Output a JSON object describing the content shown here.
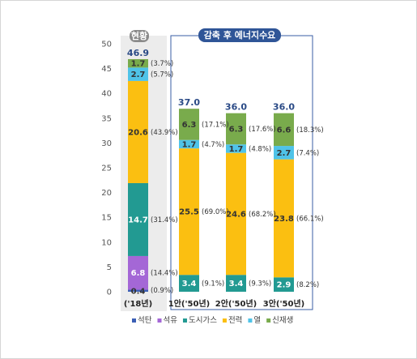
{
  "chart_data": {
    "type": "bar",
    "stacked": true,
    "ylim": [
      0,
      50
    ],
    "yticks": [
      0,
      5,
      10,
      15,
      20,
      25,
      30,
      35,
      40,
      45,
      50
    ],
    "grid": false,
    "categories": [
      "('18년)",
      "1안('50년)",
      "2안('50년)",
      "3안('50년)"
    ],
    "totals": [
      "46.9",
      "37.0",
      "36.0",
      "36.0"
    ],
    "groups": [
      {
        "label": "현황",
        "categories": [
          0
        ]
      },
      {
        "label": "감축 후 에너지수요",
        "categories": [
          1,
          2,
          3
        ]
      }
    ],
    "series": [
      {
        "name": "석탄",
        "color": "#3b5fb5",
        "values": [
          0.4,
          0,
          0,
          0
        ],
        "labels": [
          "0.4",
          "",
          "",
          ""
        ],
        "pct": [
          "(0.9%)",
          "",
          "",
          ""
        ]
      },
      {
        "name": "석유",
        "color": "#a467d6",
        "values": [
          6.8,
          0,
          0,
          0
        ],
        "labels": [
          "6.8",
          "",
          "",
          ""
        ],
        "pct": [
          "(14.4%)",
          "",
          "",
          ""
        ]
      },
      {
        "name": "도시가스",
        "color": "#229a92",
        "values": [
          14.7,
          3.4,
          3.4,
          2.9
        ],
        "labels": [
          "14.7",
          "3.4",
          "3.4",
          "2.9"
        ],
        "pct": [
          "(31.4%)",
          "(9.1%)",
          "(9.3%)",
          "(8.2%)"
        ]
      },
      {
        "name": "전력",
        "color": "#fbbf11",
        "values": [
          20.6,
          25.5,
          24.6,
          23.8
        ],
        "labels": [
          "20.6",
          "25.5",
          "24.6",
          "23.8"
        ],
        "pct": [
          "(43.9%)",
          "(69.0%)",
          "(68.2%)",
          "(66.1%)"
        ]
      },
      {
        "name": "열",
        "color": "#4fc3e8",
        "values": [
          2.7,
          1.7,
          1.7,
          2.7
        ],
        "labels": [
          "2.7",
          "1.7",
          "1.7",
          "2.7"
        ],
        "pct": [
          "(5.7%)",
          "(4.7%)",
          "(4.8%)",
          "(7.4%)"
        ]
      },
      {
        "name": "신재생",
        "color": "#79ab4c",
        "values": [
          1.7,
          6.3,
          6.3,
          6.6
        ],
        "labels": [
          "1.7",
          "6.3",
          "6.3",
          "6.6"
        ],
        "pct": [
          "(3.7%)",
          "(17.1%)",
          "(17.6%)",
          "(18.3%)"
        ]
      }
    ]
  }
}
